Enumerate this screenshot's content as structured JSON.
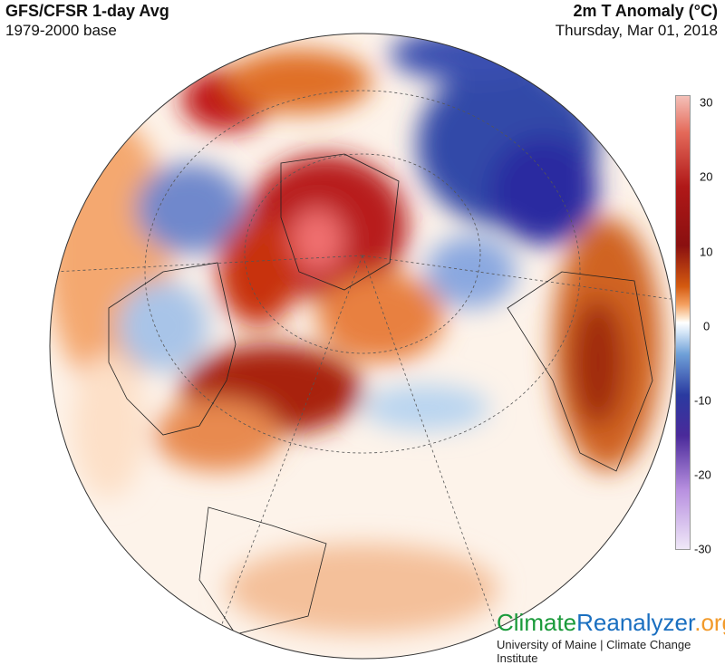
{
  "header": {
    "title_left": "GFS/CFSR 1-day Avg",
    "subtitle_left": "1979-2000 base",
    "title_right": "2m T Anomaly (°C)",
    "subtitle_right": "Thursday, Mar 01, 2018"
  },
  "colorbar": {
    "ticks": [
      "30",
      "20",
      "10",
      "0",
      "-10",
      "-20",
      "-30"
    ],
    "colors": {
      "max": "#f4c0b8",
      "warm": "#b01818",
      "zero": "#ffffff",
      "cool": "#2a3aa0",
      "min": "#f0e8f8"
    }
  },
  "map": {
    "projection": "orthographic (north polar)",
    "ocean_land_base": "#ffffff"
  },
  "branding": {
    "logo_part1": "Climate",
    "logo_part2": "Reanalyzer",
    "logo_part3": ".org",
    "institution": "University of Maine | Climate Change Institute"
  }
}
